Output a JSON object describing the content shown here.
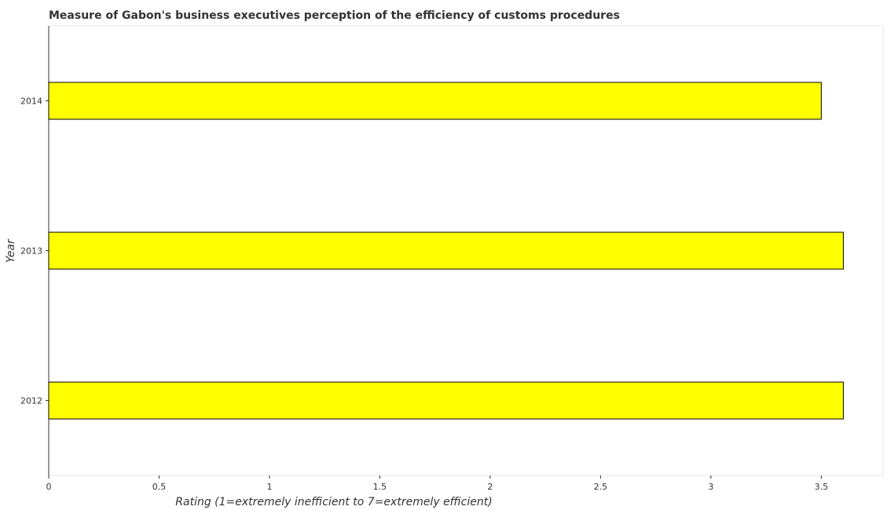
{
  "chart_data": {
    "type": "bar",
    "orientation": "horizontal",
    "title": "Measure of Gabon's business executives perception of the efficiency of customs procedures",
    "xlabel": "Rating (1=extremely inefficient to 7=extremely efficient)",
    "ylabel": "Year",
    "categories": [
      "2012",
      "2013",
      "2014"
    ],
    "values": [
      3.6,
      3.6,
      3.5
    ],
    "xlim": [
      0,
      3.78
    ],
    "xticks": [
      0,
      0.5,
      1,
      1.5,
      2,
      2.5,
      3,
      3.5
    ],
    "xtick_labels": [
      "0",
      "0.5",
      "1",
      "1.5",
      "2",
      "2.5",
      "3",
      "3.5"
    ],
    "bar_color": "#ffff00",
    "bar_edge_color": "#000000",
    "grid": false
  }
}
